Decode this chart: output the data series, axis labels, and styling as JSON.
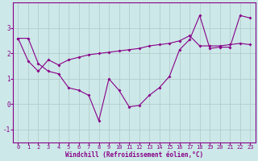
{
  "xlabel": "Windchill (Refroidissement éolien,°C)",
  "background_color": "#cce8e8",
  "grid_color": "#b0c8c8",
  "line_color": "#880088",
  "x_data": [
    0,
    1,
    2,
    3,
    4,
    5,
    6,
    7,
    8,
    9,
    10,
    11,
    12,
    13,
    14,
    15,
    16,
    17,
    18,
    19,
    20,
    21,
    22,
    23
  ],
  "y_series1": [
    2.6,
    2.6,
    1.6,
    1.3,
    1.2,
    0.65,
    0.55,
    0.35,
    -0.65,
    1.0,
    0.55,
    -0.1,
    -0.05,
    0.35,
    0.65,
    1.1,
    2.15,
    2.55,
    3.5,
    2.2,
    2.25,
    2.25,
    3.5,
    3.4
  ],
  "y_series2": [
    2.6,
    1.7,
    1.3,
    1.75,
    1.55,
    1.75,
    1.85,
    1.95,
    2.0,
    2.05,
    2.1,
    2.15,
    2.2,
    2.3,
    2.35,
    2.4,
    2.5,
    2.7,
    2.3,
    2.3,
    2.3,
    2.35,
    2.4,
    2.35
  ],
  "ylim": [
    -1.5,
    4.0
  ],
  "xlim": [
    -0.5,
    23.5
  ],
  "yticks": [
    -1,
    0,
    1,
    2,
    3
  ],
  "xticks": [
    0,
    1,
    2,
    3,
    4,
    5,
    6,
    7,
    8,
    9,
    10,
    11,
    12,
    13,
    14,
    15,
    16,
    17,
    18,
    19,
    20,
    21,
    22,
    23
  ],
  "tick_fontsize": 5.0,
  "xlabel_fontsize": 5.5,
  "marker": "D",
  "markersize": 2.0,
  "linewidth": 0.8
}
